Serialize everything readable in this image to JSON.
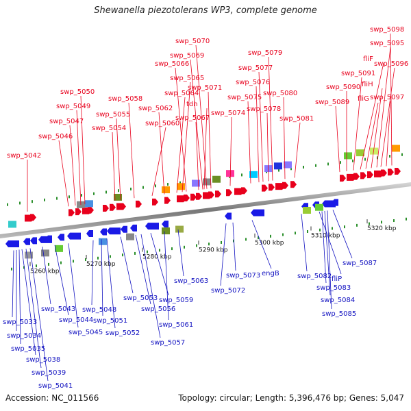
{
  "title": "Shewanella piezotolerans WP3, complete genome",
  "footer": {
    "accession": "Accession: NC_011566",
    "summary": "Topology: circular; Length: 5,396,476 bp; Genes: 5,047"
  },
  "axis_ticks": [
    "5260 kbp",
    "5270 kbp",
    "5280 kbp",
    "5290 kbp",
    "5300 kbp",
    "5310 kbp",
    "5320 kbp"
  ],
  "top_labels": [
    "swp_5042",
    "swp_5046",
    "swp_5047",
    "swp_5049",
    "swp_5050",
    "swp_5054",
    "swp_5055",
    "swp_5058",
    "swp_5060",
    "swp_5062",
    "swp_5064",
    "swp_5065",
    "swp_5066",
    "swp_5067",
    "swp_5069",
    "swp_5070",
    "swp_5071",
    "tdh",
    "swp_5074",
    "swp_5075",
    "swp_5076",
    "swp_5077",
    "swp_5078",
    "swp_5079",
    "swp_5080",
    "swp_5081",
    "swp_5089",
    "swp_5090",
    "swp_5091",
    "fliF",
    "fliG",
    "fliH",
    "swp_5095",
    "swp_5096",
    "swp_5097",
    "swp_5098"
  ],
  "bottom_labels": [
    "swp_5033",
    "swp_5034",
    "swp_5035",
    "swp_5038",
    "swp_5039",
    "swp_5041",
    "swp_5043",
    "swp_5044",
    "swp_5045",
    "swp_5048",
    "swp_5051",
    "swp_5052",
    "swp_5053",
    "swp_5056",
    "swp_5057",
    "swp_5059",
    "swp_5061",
    "swp_5063",
    "swp_5072",
    "swp_5073",
    "engB",
    "swp_5082",
    "fliP",
    "swp_5083",
    "swp_5084",
    "swp_5085",
    "swp_5087"
  ],
  "colors": {
    "forward_gene": "#e8001c",
    "reverse_gene": "#1a1ae6",
    "top_label": "#e8001c",
    "bottom_label": "#1010c0",
    "backbone": "#888888"
  }
}
